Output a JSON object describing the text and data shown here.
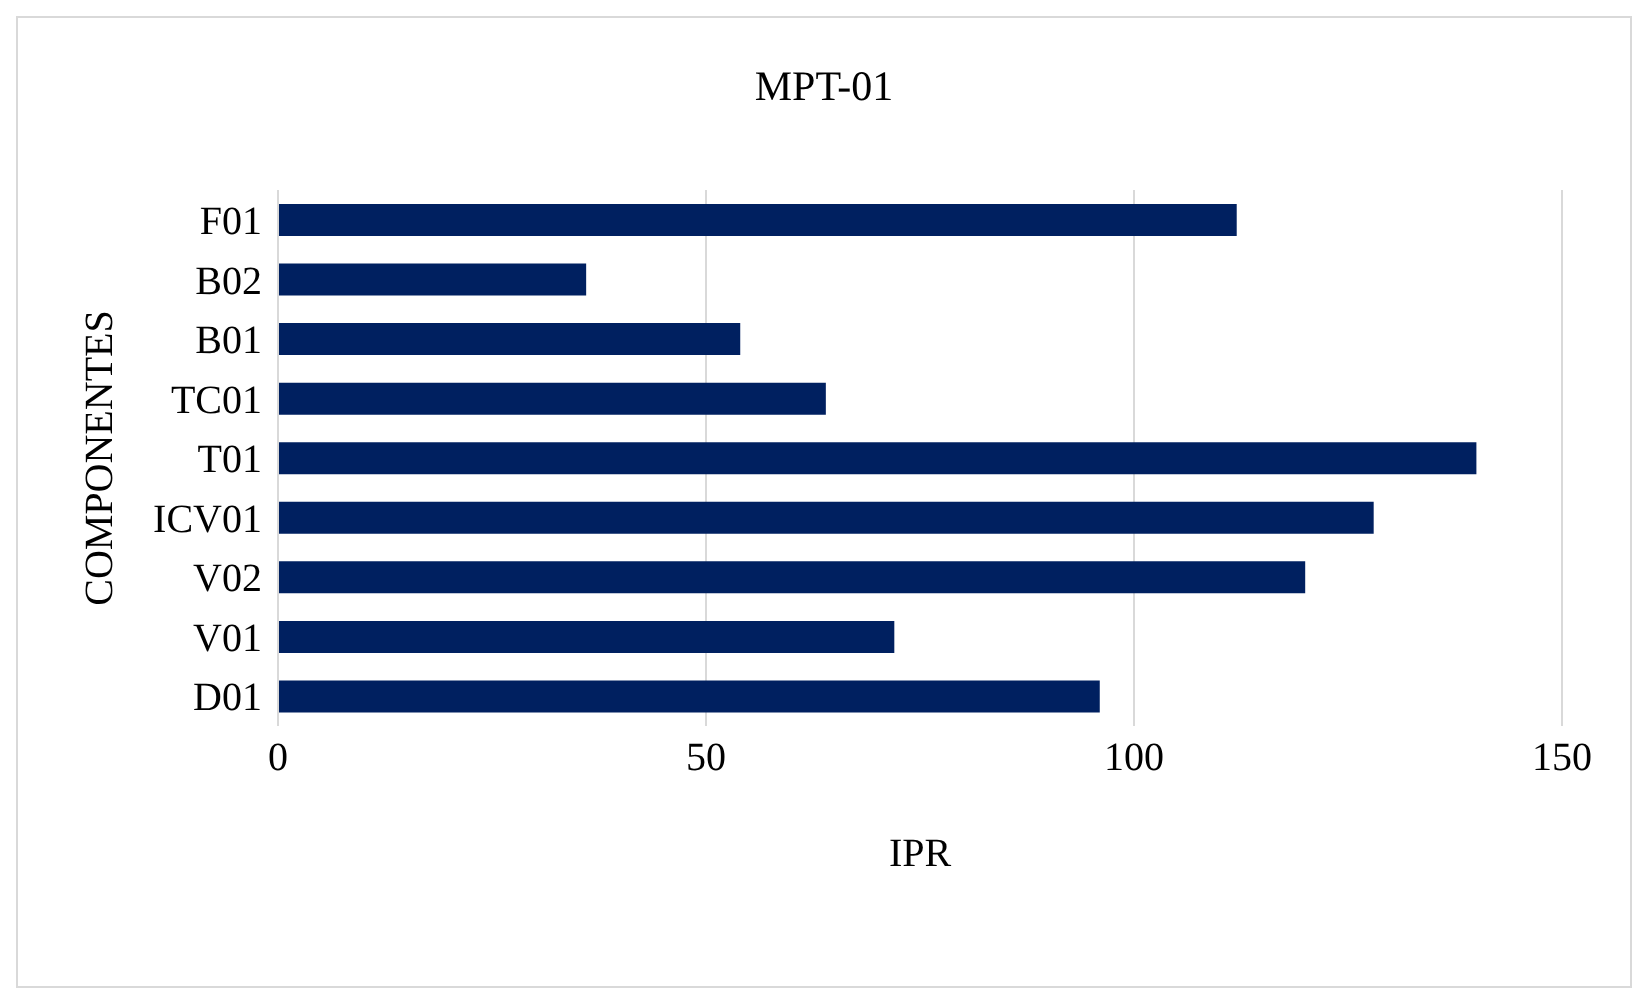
{
  "chart_data": {
    "type": "bar",
    "orientation": "horizontal",
    "title": "MPT-01",
    "xlabel": "IPR",
    "ylabel": "COMPONENTES",
    "categories": [
      "F01",
      "B02",
      "B01",
      "TC01",
      "T01",
      "ICV01",
      "V02",
      "V01",
      "D01"
    ],
    "values": [
      112,
      36,
      54,
      64,
      140,
      128,
      120,
      72,
      96
    ],
    "color": "#002060",
    "xlim": [
      0,
      150
    ],
    "xticks": [
      0,
      50,
      100,
      150
    ],
    "grid": "x"
  }
}
